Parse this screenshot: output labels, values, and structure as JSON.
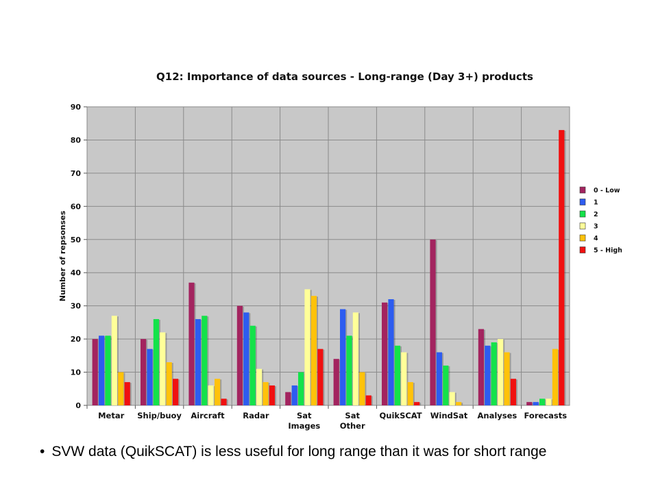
{
  "chart_data": {
    "type": "bar",
    "title": "Q12: Importance of data sources - Long-range (Day 3+) products",
    "xlabel": "",
    "ylabel": "Number of repsonses",
    "ylim": [
      0,
      90
    ],
    "yticks": [
      0,
      10,
      20,
      30,
      40,
      50,
      60,
      70,
      80,
      90
    ],
    "grid": true,
    "legend_position": "right",
    "categories": [
      [
        "Metar"
      ],
      [
        "Ship/buoy"
      ],
      [
        "Aircraft"
      ],
      [
        "Radar"
      ],
      [
        "Sat",
        "Images"
      ],
      [
        "Sat",
        "Other"
      ],
      [
        "QuikSCAT"
      ],
      [
        "WindSat"
      ],
      [
        "Analyses"
      ],
      [
        "Forecasts"
      ]
    ],
    "series": [
      {
        "name": "0 - Low",
        "color": "#a3245f",
        "values": [
          20,
          20,
          37,
          30,
          4,
          14,
          31,
          50,
          23,
          1
        ]
      },
      {
        "name": "1",
        "color": "#2d5cf0",
        "values": [
          21,
          17,
          26,
          28,
          6,
          29,
          32,
          16,
          18,
          1
        ]
      },
      {
        "name": "2",
        "color": "#14e24a",
        "values": [
          21,
          26,
          27,
          24,
          10,
          21,
          18,
          12,
          19,
          2
        ]
      },
      {
        "name": "3",
        "color": "#ffff99",
        "values": [
          27,
          22,
          6,
          11,
          35,
          28,
          16,
          4,
          20,
          2
        ]
      },
      {
        "name": "4",
        "color": "#ffc20a",
        "values": [
          10,
          13,
          8,
          7,
          33,
          10,
          7,
          1,
          16,
          17
        ]
      },
      {
        "name": "5 - High",
        "color": "#f01010",
        "values": [
          7,
          8,
          2,
          6,
          17,
          3,
          1,
          0,
          8,
          83
        ]
      }
    ],
    "plot_background": "#c8c8c8"
  },
  "bullet": {
    "symbol": "•",
    "text": "SVW data (QuikSCAT) is less useful for long range than it was for short range"
  }
}
